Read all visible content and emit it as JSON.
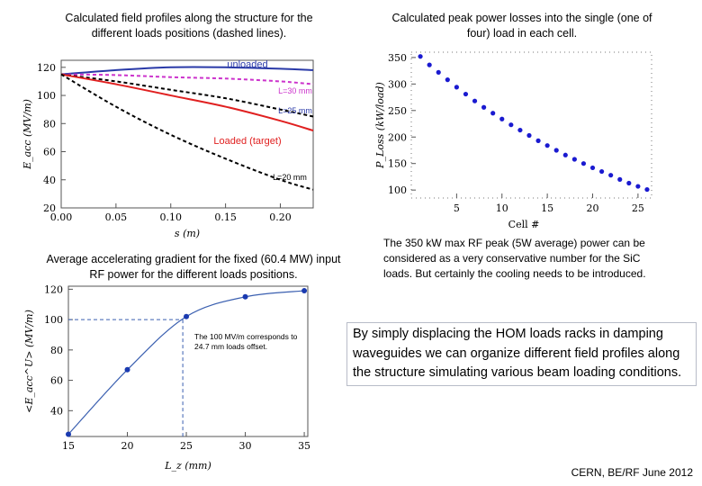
{
  "captions": {
    "fields": "Calculated field profiles along the structure for the different loads positions (dashed lines).",
    "power": "Calculated peak power losses into the single (one of four) load in each cell.",
    "gradient": "Average accelerating gradient for the fixed (60.4 MW) input RF power for the different loads positions."
  },
  "notes": {
    "power_note": "The 350 kW max RF peak (5W average) power can be considered as a very conservative number for the SiC loads. But certainly the cooling needs to be introduced.",
    "main_note": "By simply displacing the HOM loads racks in damping waveguides we can organize different field profiles along the structure simulating various beam loading conditions.",
    "footer": "CERN, BE/RF June 2012"
  },
  "chart_data": [
    {
      "id": "field-profiles",
      "type": "line",
      "xlabel": "s (m)",
      "ylabel": "E_acc (MV/m)",
      "xlim": [
        0,
        0.23
      ],
      "ylim": [
        20,
        125
      ],
      "xticks": [
        "0.00",
        "0.05",
        "0.10",
        "0.15",
        "0.20"
      ],
      "yticks": [
        "20",
        "40",
        "60",
        "80",
        "100",
        "120"
      ],
      "annotations": [
        "unloaded",
        "L=30 mm",
        "L=25 mm",
        "Loaded (target)",
        "L=20 mm"
      ],
      "series": [
        {
          "name": "unloaded",
          "color": "#2a3aa8",
          "dash": false,
          "x": [
            0,
            0.05,
            0.1,
            0.15,
            0.2,
            0.23
          ],
          "y": [
            115,
            118,
            120,
            120,
            119,
            118
          ]
        },
        {
          "name": "L=30 mm",
          "color": "#cc33cc",
          "dash": true,
          "x": [
            0,
            0.05,
            0.1,
            0.15,
            0.2,
            0.23
          ],
          "y": [
            115,
            114.5,
            113,
            112,
            110,
            108
          ]
        },
        {
          "name": "L=25 mm",
          "color": "#000000",
          "dash": true,
          "x": [
            0,
            0.05,
            0.1,
            0.15,
            0.2,
            0.23
          ],
          "y": [
            115,
            110,
            104,
            98,
            90,
            85
          ]
        },
        {
          "name": "Loaded (target)",
          "color": "#e02020",
          "dash": false,
          "x": [
            0,
            0.05,
            0.1,
            0.15,
            0.2,
            0.23
          ],
          "y": [
            115,
            108,
            100,
            92,
            82,
            75
          ]
        },
        {
          "name": "L=20 mm",
          "color": "#000000",
          "dash": true,
          "x": [
            0,
            0.05,
            0.1,
            0.15,
            0.2,
            0.23
          ],
          "y": [
            115,
            92,
            72,
            55,
            40,
            33
          ]
        }
      ]
    },
    {
      "id": "peak-power",
      "type": "scatter",
      "xlabel": "Cell #",
      "ylabel": "P_Loss (kW/load)",
      "xlim": [
        0,
        26.5
      ],
      "ylim": [
        85,
        360
      ],
      "xticks": [
        "5",
        "10",
        "15",
        "20",
        "25"
      ],
      "yticks": [
        "100",
        "150",
        "200",
        "250",
        "300",
        "350"
      ],
      "x": [
        1,
        2,
        3,
        4,
        5,
        6,
        7,
        8,
        9,
        10,
        11,
        12,
        13,
        14,
        15,
        16,
        17,
        18,
        19,
        20,
        21,
        22,
        23,
        24,
        25,
        26
      ],
      "y": [
        352,
        336,
        322,
        308,
        294,
        281,
        268,
        256,
        245,
        234,
        223,
        213,
        203,
        193,
        184,
        175,
        166,
        158,
        150,
        142,
        135,
        128,
        120,
        113,
        107,
        101
      ]
    },
    {
      "id": "avg-gradient",
      "type": "line",
      "xlabel": "L_z (mm)",
      "ylabel": "<E_acc^U> (MV/m)",
      "xlim": [
        15,
        35.3
      ],
      "ylim": [
        23,
        122
      ],
      "xticks": [
        "15",
        "20",
        "25",
        "30",
        "35"
      ],
      "yticks": [
        "40",
        "60",
        "80",
        "100",
        "120"
      ],
      "points": {
        "x": [
          15,
          20,
          25,
          30,
          35
        ],
        "y": [
          24.5,
          67,
          102,
          115,
          119
        ]
      },
      "marker": {
        "x": 24.7,
        "y": 100
      },
      "annotation": "The 100 MV/m corresponds to 24.7 mm loads offset."
    }
  ]
}
